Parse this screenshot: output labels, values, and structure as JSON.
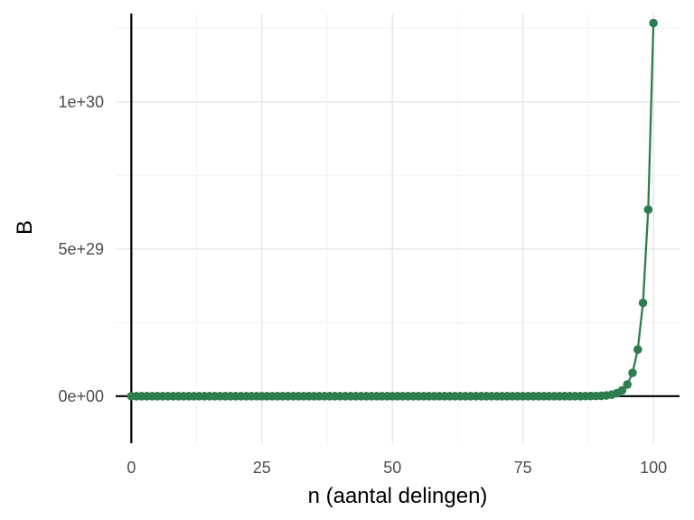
{
  "chart_data": {
    "type": "line",
    "xlabel": "n (aantal delingen)",
    "ylabel": "B",
    "xlim": [
      -3,
      105
    ],
    "ylim": [
      -1.6e+29,
      1.3e+30
    ],
    "x_ticks": [
      0,
      25,
      50,
      75,
      100
    ],
    "x_tick_labels": [
      "0",
      "25",
      "50",
      "75",
      "100"
    ],
    "y_ticks": [
      0,
      5e+29,
      1e+30
    ],
    "y_tick_labels": [
      "0e+00",
      "5e+29",
      "1e+30"
    ],
    "grid": true,
    "legend": "none",
    "markers": true,
    "series_color": "#2e7d4f",
    "series": [
      {
        "x_start": 0,
        "x_end": 100,
        "x_step": 1,
        "formula": "2^n"
      }
    ]
  }
}
